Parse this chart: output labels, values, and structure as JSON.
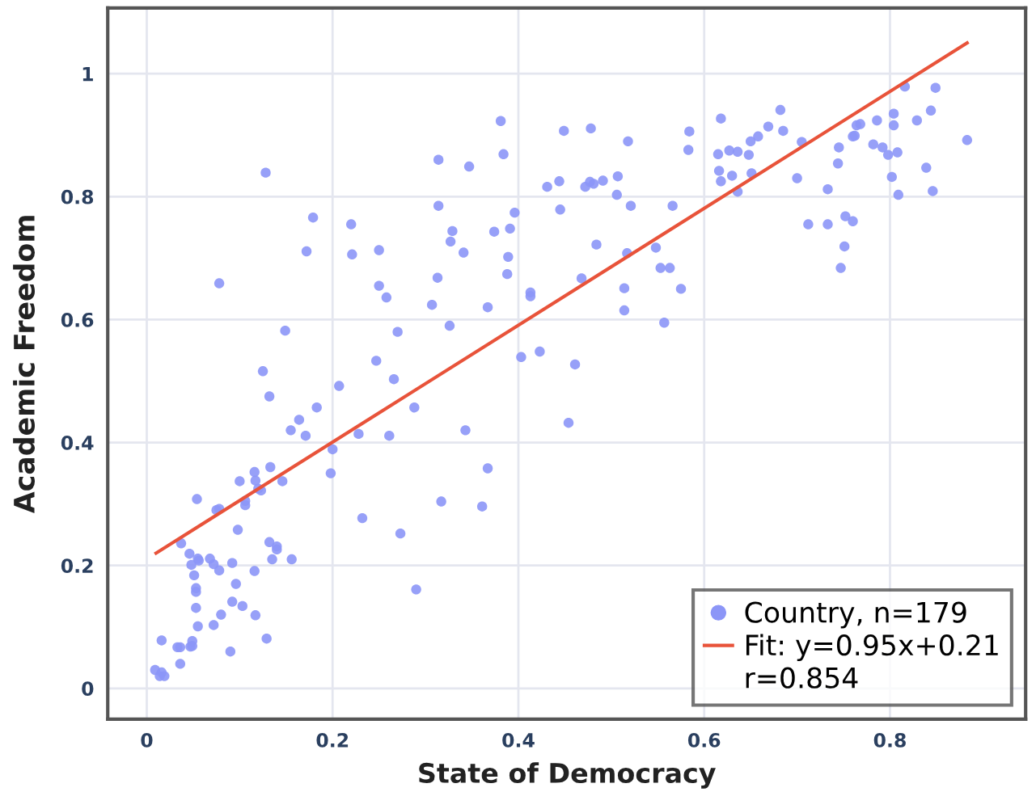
{
  "chart_data": {
    "type": "scatter",
    "xlabel": "State of Democracy",
    "ylabel": "Academic Freedom",
    "xlim": [
      -0.042,
      0.946
    ],
    "ylim": [
      -0.05,
      1.107
    ],
    "xticks": [
      0,
      0.2,
      0.4,
      0.6,
      0.8
    ],
    "yticks": [
      0,
      0.2,
      0.4,
      0.6,
      0.8,
      1
    ],
    "grid": true,
    "legend": "bottom right",
    "annotations": [
      "r=0.854"
    ],
    "series": [
      {
        "name": "Country, n=179",
        "marker": "circle",
        "color": "#8c96f7",
        "x": [
          0.009,
          0.014,
          0.016,
          0.019,
          0.016,
          0.033,
          0.036,
          0.036,
          0.047,
          0.049,
          0.049,
          0.037,
          0.046,
          0.048,
          0.051,
          0.053,
          0.053,
          0.053,
          0.055,
          0.055,
          0.056,
          0.054,
          0.068,
          0.072,
          0.072,
          0.078,
          0.08,
          0.075,
          0.078,
          0.078,
          0.09,
          0.092,
          0.092,
          0.096,
          0.098,
          0.1,
          0.103,
          0.106,
          0.106,
          0.116,
          0.116,
          0.117,
          0.117,
          0.12,
          0.123,
          0.125,
          0.128,
          0.129,
          0.132,
          0.133,
          0.132,
          0.135,
          0.14,
          0.14,
          0.146,
          0.149,
          0.155,
          0.156,
          0.164,
          0.171,
          0.172,
          0.179,
          0.183,
          0.198,
          0.2,
          0.207,
          0.22,
          0.221,
          0.228,
          0.232,
          0.247,
          0.25,
          0.25,
          0.258,
          0.261,
          0.266,
          0.27,
          0.273,
          0.288,
          0.29,
          0.307,
          0.313,
          0.314,
          0.314,
          0.317,
          0.326,
          0.327,
          0.329,
          0.341,
          0.343,
          0.347,
          0.361,
          0.367,
          0.367,
          0.374,
          0.381,
          0.384,
          0.388,
          0.389,
          0.391,
          0.396,
          0.403,
          0.413,
          0.413,
          0.423,
          0.431,
          0.444,
          0.445,
          0.449,
          0.454,
          0.461,
          0.468,
          0.472,
          0.477,
          0.481,
          0.478,
          0.484,
          0.491,
          0.506,
          0.507,
          0.514,
          0.514,
          0.517,
          0.518,
          0.521,
          0.548,
          0.553,
          0.557,
          0.563,
          0.566,
          0.575,
          0.583,
          0.584,
          0.615,
          0.616,
          0.618,
          0.618,
          0.627,
          0.63,
          0.636,
          0.636,
          0.648,
          0.65,
          0.651,
          0.658,
          0.669,
          0.682,
          0.685,
          0.7,
          0.705,
          0.712,
          0.733,
          0.733,
          0.744,
          0.745,
          0.747,
          0.751,
          0.752,
          0.76,
          0.76,
          0.762,
          0.764,
          0.768,
          0.782,
          0.786,
          0.792,
          0.798,
          0.802,
          0.804,
          0.804,
          0.808,
          0.809,
          0.816,
          0.829,
          0.839,
          0.844,
          0.846,
          0.849,
          0.883
        ],
        "values": [
          0.03,
          0.02,
          0.026,
          0.02,
          0.078,
          0.067,
          0.067,
          0.04,
          0.068,
          0.077,
          0.069,
          0.236,
          0.219,
          0.201,
          0.184,
          0.163,
          0.157,
          0.131,
          0.101,
          0.211,
          0.208,
          0.308,
          0.211,
          0.202,
          0.103,
          0.192,
          0.12,
          0.29,
          0.292,
          0.659,
          0.06,
          0.204,
          0.141,
          0.17,
          0.258,
          0.337,
          0.134,
          0.305,
          0.298,
          0.352,
          0.191,
          0.119,
          0.338,
          0.325,
          0.322,
          0.516,
          0.839,
          0.081,
          0.238,
          0.36,
          0.475,
          0.21,
          0.231,
          0.226,
          0.337,
          0.582,
          0.42,
          0.21,
          0.437,
          0.411,
          0.711,
          0.766,
          0.457,
          0.35,
          0.389,
          0.492,
          0.755,
          0.706,
          0.414,
          0.277,
          0.533,
          0.713,
          0.655,
          0.636,
          0.411,
          0.503,
          0.58,
          0.252,
          0.457,
          0.161,
          0.624,
          0.668,
          0.86,
          0.785,
          0.304,
          0.59,
          0.727,
          0.744,
          0.709,
          0.42,
          0.849,
          0.296,
          0.62,
          0.358,
          0.743,
          0.923,
          0.869,
          0.674,
          0.702,
          0.748,
          0.774,
          0.539,
          0.644,
          0.638,
          0.548,
          0.816,
          0.825,
          0.779,
          0.907,
          0.432,
          0.527,
          0.667,
          0.816,
          0.824,
          0.821,
          0.911,
          0.722,
          0.826,
          0.803,
          0.833,
          0.651,
          0.615,
          0.708,
          0.89,
          0.785,
          0.717,
          0.684,
          0.595,
          0.684,
          0.785,
          0.65,
          0.876,
          0.906,
          0.869,
          0.842,
          0.825,
          0.927,
          0.875,
          0.834,
          0.808,
          0.873,
          0.868,
          0.89,
          0.838,
          0.898,
          0.914,
          0.941,
          0.907,
          0.83,
          0.889,
          0.755,
          0.812,
          0.755,
          0.854,
          0.88,
          0.684,
          0.719,
          0.768,
          0.898,
          0.76,
          0.899,
          0.916,
          0.918,
          0.885,
          0.924,
          0.88,
          0.868,
          0.832,
          0.935,
          0.916,
          0.872,
          0.803,
          0.979,
          0.924,
          0.847,
          0.94,
          0.809,
          0.977,
          0.892
        ]
      },
      {
        "name": "Fit: y=0.95x+0.21",
        "type": "line",
        "marker": "none",
        "color": "#e8533a",
        "x": [
          0.01,
          0.883
        ],
        "values": [
          0.22,
          1.05
        ]
      }
    ]
  }
}
